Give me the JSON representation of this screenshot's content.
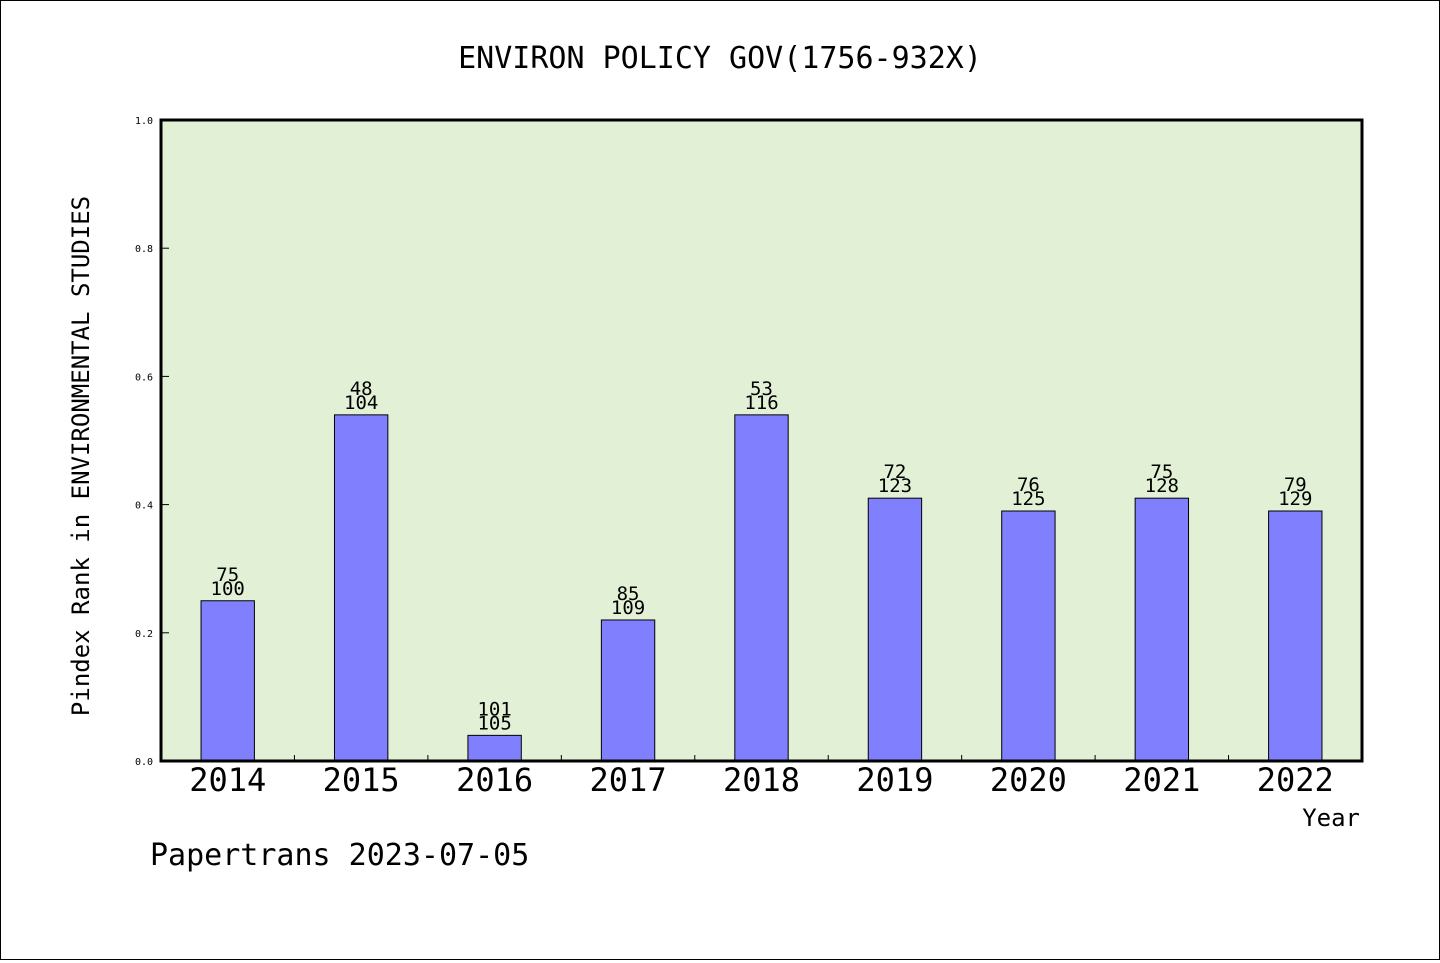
{
  "colors": {
    "plot_background": "#e2f0d6",
    "bar_fill": "#8080ff",
    "bar_stroke": "#000000",
    "frame": "#000000"
  },
  "footer_text": "Papertrans 2023-07-05",
  "chart_data": {
    "type": "bar",
    "title": "ENVIRON POLICY GOV(1756-932X)",
    "xlabel": "Year",
    "ylabel": "Pindex Rank in ENVIRONMENTAL STUDIES",
    "ylim": [
      0,
      1.0
    ],
    "yticks": [
      0.0,
      0.2,
      0.4,
      0.6,
      0.8,
      1.0
    ],
    "ytick_labels": [
      "0.0",
      "0.2",
      "0.4",
      "0.6",
      "0.8",
      "1.0"
    ],
    "grid": false,
    "categories": [
      "2014",
      "2015",
      "2016",
      "2017",
      "2018",
      "2019",
      "2020",
      "2021",
      "2022"
    ],
    "values": [
      0.25,
      0.54,
      0.04,
      0.22,
      0.54,
      0.41,
      0.39,
      0.41,
      0.39
    ],
    "rank_labels": [
      "75",
      "48",
      "101",
      "85",
      "53",
      "72",
      "76",
      "75",
      "79"
    ],
    "total_labels": [
      "100",
      "104",
      "105",
      "109",
      "116",
      "123",
      "125",
      "128",
      "129"
    ]
  }
}
